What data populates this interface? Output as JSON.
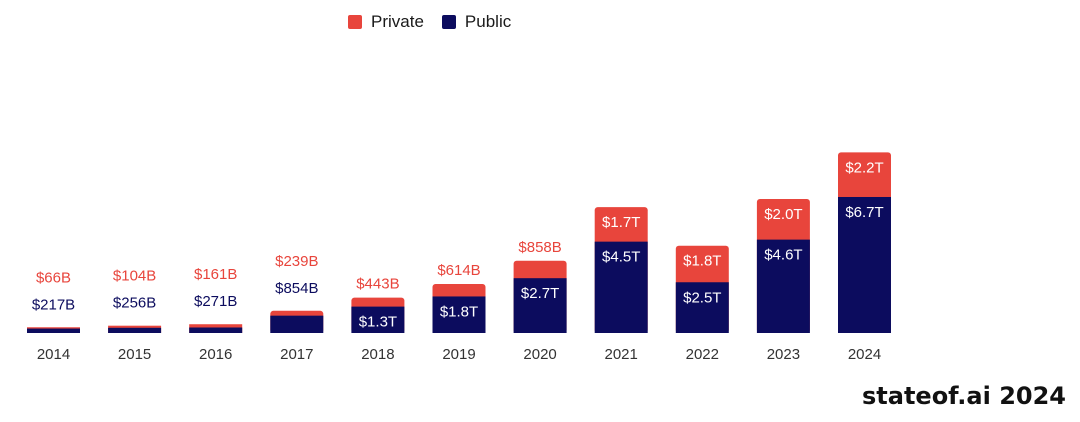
{
  "chart_data": {
    "type": "bar",
    "stacked": true,
    "title": "",
    "xlabel": "",
    "ylabel": "",
    "categories": [
      "2014",
      "2015",
      "2016",
      "2017",
      "2018",
      "2019",
      "2020",
      "2021",
      "2022",
      "2023",
      "2024"
    ],
    "series": [
      {
        "name": "Public",
        "color": "#0c0c5e",
        "values": [
          0.217,
          0.256,
          0.271,
          0.854,
          1.3,
          1.8,
          2.7,
          4.5,
          2.5,
          4.6,
          6.7
        ],
        "labels": [
          "$217B",
          "$256B",
          "$271B",
          "$854B",
          "$1.3T",
          "$1.8T",
          "$2.7T",
          "$4.5T",
          "$2.5T",
          "$4.6T",
          "$6.7T"
        ]
      },
      {
        "name": "Private",
        "color": "#e8453c",
        "values": [
          0.066,
          0.104,
          0.161,
          0.239,
          0.443,
          0.614,
          0.858,
          1.7,
          1.8,
          2.0,
          2.2
        ],
        "labels": [
          "$66B",
          "$104B",
          "$161B",
          "$239B",
          "$443B",
          "$614B",
          "$858B",
          "$1.7T",
          "$1.8T",
          "$2.0T",
          "$2.2T"
        ]
      }
    ],
    "units": "USD trillions",
    "legend_position": "top-center",
    "grid": false
  },
  "legend": {
    "items": [
      {
        "label": "Private",
        "color": "#e8453c"
      },
      {
        "label": "Public",
        "color": "#0c0c5e"
      }
    ]
  },
  "brand": {
    "text": "stateof.ai 2024"
  }
}
